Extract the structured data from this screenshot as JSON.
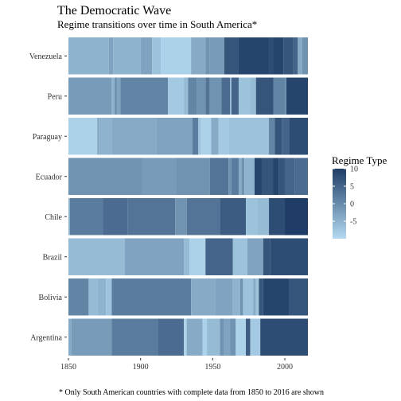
{
  "chart_data": {
    "type": "heatmap",
    "title": "The Democratic Wave",
    "subtitle": "Regime transitions over time in South America*",
    "caption": "* Only South American countries with complete data from 1850 to 2016 are shown",
    "xlabel": "",
    "ylabel": "",
    "xlim": [
      1850,
      2016
    ],
    "x_ticks": [
      1850,
      1900,
      1950,
      2000
    ],
    "grid": false,
    "legend": {
      "title": "Regime Type",
      "position": "right",
      "range": [
        -10,
        10
      ],
      "ticks": [
        10,
        5,
        0,
        -5
      ],
      "color_low": "#b3daf1",
      "color_high": "#1f3d66"
    },
    "categories": [
      "Venezuela",
      "Peru",
      "Paraguay",
      "Ecuador",
      "Chile",
      "Brazil",
      "Bolivia",
      "Argentina"
    ],
    "series": [
      {
        "name": "Venezuela",
        "segments": [
          [
            1850,
            1878,
            -5
          ],
          [
            1878,
            1881,
            -3
          ],
          [
            1881,
            1900,
            -5
          ],
          [
            1900,
            1908,
            -3
          ],
          [
            1908,
            1914,
            -7
          ],
          [
            1914,
            1935,
            -9
          ],
          [
            1935,
            1945,
            -4
          ],
          [
            1945,
            1948,
            -1
          ],
          [
            1948,
            1958,
            -2
          ],
          [
            1958,
            1968,
            7
          ],
          [
            1968,
            1989,
            9
          ],
          [
            1989,
            1992,
            8
          ],
          [
            1992,
            1999,
            9
          ],
          [
            1999,
            2006,
            7
          ],
          [
            2006,
            2009,
            5
          ],
          [
            2009,
            2012,
            -4
          ],
          [
            2012,
            2016,
            -1
          ]
        ]
      },
      {
        "name": "Peru",
        "segments": [
          [
            1850,
            1880,
            -2
          ],
          [
            1880,
            1882,
            -5
          ],
          [
            1882,
            1884,
            -1
          ],
          [
            1884,
            1886,
            -3
          ],
          [
            1886,
            1919,
            1
          ],
          [
            1919,
            1930,
            -8
          ],
          [
            1930,
            1933,
            -6
          ],
          [
            1933,
            1939,
            1
          ],
          [
            1939,
            1945,
            -1
          ],
          [
            1945,
            1948,
            3
          ],
          [
            1948,
            1956,
            -1
          ],
          [
            1956,
            1962,
            4
          ],
          [
            1962,
            1963,
            -6
          ],
          [
            1963,
            1968,
            5
          ],
          [
            1968,
            1976,
            -7
          ],
          [
            1976,
            1980,
            -6
          ],
          [
            1980,
            1992,
            7
          ],
          [
            1992,
            2000,
            1
          ],
          [
            2000,
            2001,
            -1
          ],
          [
            2001,
            2016,
            9
          ]
        ]
      },
      {
        "name": "Paraguay",
        "segments": [
          [
            1850,
            1870,
            -9
          ],
          [
            1870,
            1871,
            -3
          ],
          [
            1871,
            1880,
            -5
          ],
          [
            1880,
            1911,
            -4
          ],
          [
            1911,
            1936,
            -3
          ],
          [
            1936,
            1940,
            2
          ],
          [
            1940,
            1942,
            -7
          ],
          [
            1942,
            1949,
            -9
          ],
          [
            1949,
            1954,
            -4
          ],
          [
            1954,
            1961,
            -8
          ],
          [
            1961,
            1989,
            -7
          ],
          [
            1989,
            1993,
            1
          ],
          [
            1993,
            1998,
            7
          ],
          [
            1998,
            2003,
            5
          ],
          [
            2003,
            2016,
            8
          ]
        ]
      },
      {
        "name": "Ecuador",
        "segments": [
          [
            1850,
            1901,
            -1
          ],
          [
            1901,
            1925,
            -2
          ],
          [
            1925,
            1948,
            -1
          ],
          [
            1948,
            1961,
            3
          ],
          [
            1961,
            1963,
            -1
          ],
          [
            1963,
            1968,
            2
          ],
          [
            1968,
            1970,
            -4
          ],
          [
            1970,
            1972,
            -1
          ],
          [
            1972,
            1979,
            -5
          ],
          [
            1979,
            1984,
            9
          ],
          [
            1984,
            1992,
            7
          ],
          [
            1992,
            1996,
            9
          ],
          [
            1996,
            2000,
            7
          ],
          [
            2000,
            2007,
            5
          ],
          [
            2007,
            2016,
            4
          ]
        ]
      },
      {
        "name": "Chile",
        "segments": [
          [
            1850,
            1851,
            -5
          ],
          [
            1851,
            1874,
            2
          ],
          [
            1874,
            1891,
            4
          ],
          [
            1891,
            1924,
            3
          ],
          [
            1924,
            1932,
            -1
          ],
          [
            1932,
            1955,
            3
          ],
          [
            1955,
            1973,
            6
          ],
          [
            1973,
            1981,
            -7
          ],
          [
            1981,
            1989,
            -6
          ],
          [
            1989,
            2000,
            8
          ],
          [
            2000,
            2016,
            10
          ]
        ]
      },
      {
        "name": "Brazil",
        "segments": [
          [
            1850,
            1889,
            -6
          ],
          [
            1889,
            1930,
            -3
          ],
          [
            1930,
            1934,
            -6
          ],
          [
            1934,
            1945,
            -9
          ],
          [
            1945,
            1964,
            5
          ],
          [
            1964,
            1974,
            -7
          ],
          [
            1974,
            1985,
            -3
          ],
          [
            1985,
            1990,
            7
          ],
          [
            1990,
            2016,
            8
          ]
        ]
      },
      {
        "name": "Bolivia",
        "segments": [
          [
            1850,
            1864,
            1
          ],
          [
            1864,
            1870,
            -6
          ],
          [
            1870,
            1876,
            -5
          ],
          [
            1876,
            1880,
            -7
          ],
          [
            1880,
            1935,
            2
          ],
          [
            1935,
            1952,
            -4
          ],
          [
            1952,
            1964,
            -3
          ],
          [
            1964,
            1969,
            -5
          ],
          [
            1969,
            1971,
            -1
          ],
          [
            1971,
            1978,
            -7
          ],
          [
            1978,
            1980,
            -4
          ],
          [
            1980,
            1982,
            -7
          ],
          [
            1982,
            1985,
            7
          ],
          [
            1985,
            2003,
            9
          ],
          [
            2003,
            2016,
            7
          ]
        ]
      },
      {
        "name": "Argentina",
        "segments": [
          [
            1850,
            1852,
            -4
          ],
          [
            1852,
            1880,
            -2
          ],
          [
            1880,
            1912,
            2
          ],
          [
            1912,
            1930,
            4
          ],
          [
            1930,
            1932,
            -9
          ],
          [
            1932,
            1943,
            -4
          ],
          [
            1943,
            1946,
            -9
          ],
          [
            1946,
            1955,
            -6
          ],
          [
            1955,
            1958,
            -1
          ],
          [
            1958,
            1962,
            -3
          ],
          [
            1962,
            1966,
            -1
          ],
          [
            1966,
            1973,
            -9
          ],
          [
            1973,
            1976,
            6
          ],
          [
            1976,
            1983,
            -8
          ],
          [
            1983,
            2016,
            8
          ]
        ]
      }
    ]
  }
}
